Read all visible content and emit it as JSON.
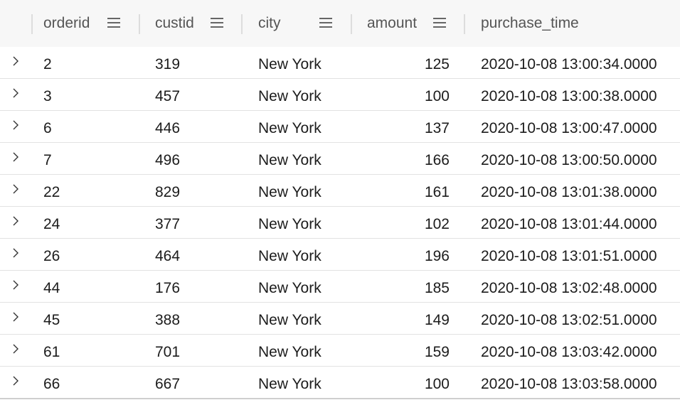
{
  "columns": [
    {
      "key": "orderid",
      "label": "orderid"
    },
    {
      "key": "custid",
      "label": "custid"
    },
    {
      "key": "city",
      "label": "city"
    },
    {
      "key": "amount",
      "label": "amount"
    },
    {
      "key": "purchase_time",
      "label": "purchase_time"
    }
  ],
  "icons": {
    "row_expand": "chevron-right-icon",
    "column_menu": "menu-icon"
  },
  "rows": [
    {
      "orderid": "2",
      "custid": "319",
      "city": "New York",
      "amount": "125",
      "purchase_time": "2020-10-08 13:00:34.0000"
    },
    {
      "orderid": "3",
      "custid": "457",
      "city": "New York",
      "amount": "100",
      "purchase_time": "2020-10-08 13:00:38.0000"
    },
    {
      "orderid": "6",
      "custid": "446",
      "city": "New York",
      "amount": "137",
      "purchase_time": "2020-10-08 13:00:47.0000"
    },
    {
      "orderid": "7",
      "custid": "496",
      "city": "New York",
      "amount": "166",
      "purchase_time": "2020-10-08 13:00:50.0000"
    },
    {
      "orderid": "22",
      "custid": "829",
      "city": "New York",
      "amount": "161",
      "purchase_time": "2020-10-08 13:01:38.0000"
    },
    {
      "orderid": "24",
      "custid": "377",
      "city": "New York",
      "amount": "102",
      "purchase_time": "2020-10-08 13:01:44.0000"
    },
    {
      "orderid": "26",
      "custid": "464",
      "city": "New York",
      "amount": "196",
      "purchase_time": "2020-10-08 13:01:51.0000"
    },
    {
      "orderid": "44",
      "custid": "176",
      "city": "New York",
      "amount": "185",
      "purchase_time": "2020-10-08 13:02:48.0000"
    },
    {
      "orderid": "45",
      "custid": "388",
      "city": "New York",
      "amount": "149",
      "purchase_time": "2020-10-08 13:02:51.0000"
    },
    {
      "orderid": "61",
      "custid": "701",
      "city": "New York",
      "amount": "159",
      "purchase_time": "2020-10-08 13:03:42.0000"
    },
    {
      "orderid": "66",
      "custid": "667",
      "city": "New York",
      "amount": "100",
      "purchase_time": "2020-10-08 13:03:58.0000"
    }
  ]
}
